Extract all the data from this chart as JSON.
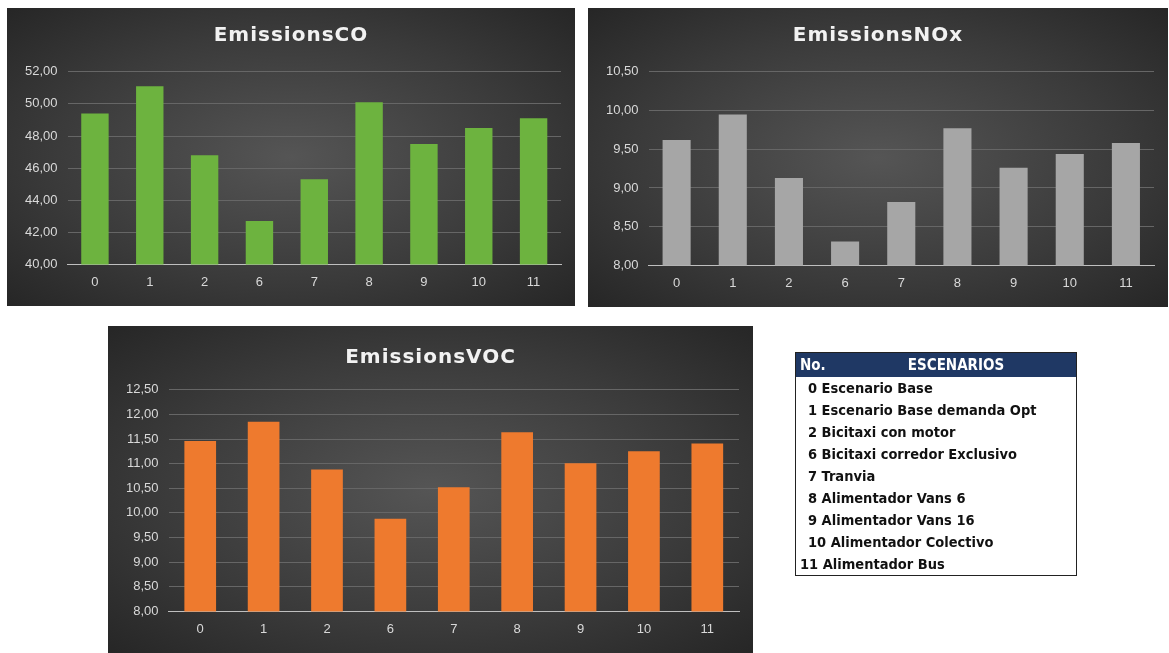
{
  "chart_data": [
    {
      "type": "bar",
      "title": "EmissionsCO",
      "categories": [
        "0",
        "1",
        "2",
        "6",
        "7",
        "8",
        "9",
        "10",
        "11"
      ],
      "values": [
        49.4,
        51.1,
        46.8,
        42.7,
        45.3,
        50.1,
        47.5,
        48.5,
        49.1
      ],
      "color": "#6db33f",
      "ylim": [
        40,
        52
      ],
      "yticks": [
        {
          "value": 40,
          "label": "40,00"
        },
        {
          "value": 42,
          "label": "42,00"
        },
        {
          "value": 44,
          "label": "44,00"
        },
        {
          "value": 46,
          "label": "46,00"
        },
        {
          "value": 48,
          "label": "48,00"
        },
        {
          "value": 50,
          "label": "50,00"
        },
        {
          "value": 52,
          "label": "52,00"
        }
      ],
      "grid": "y",
      "legend": false
    },
    {
      "type": "bar",
      "title": "EmissionsNOx",
      "categories": [
        "0",
        "1",
        "2",
        "6",
        "7",
        "8",
        "9",
        "10",
        "11"
      ],
      "values": [
        9.62,
        9.95,
        9.13,
        8.31,
        8.82,
        9.77,
        9.26,
        9.44,
        9.58
      ],
      "color": "#a6a6a6",
      "ylim": [
        8,
        10.5
      ],
      "yticks": [
        {
          "value": 8,
          "label": "8,00"
        },
        {
          "value": 8.5,
          "label": "8,50"
        },
        {
          "value": 9,
          "label": "9,00"
        },
        {
          "value": 9.5,
          "label": "9,50"
        },
        {
          "value": 10,
          "label": "10,00"
        },
        {
          "value": 10.5,
          "label": "10,50"
        }
      ],
      "grid": "y",
      "legend": false
    },
    {
      "type": "bar",
      "title": "EmissionsVOC",
      "categories": [
        "0",
        "1",
        "2",
        "6",
        "7",
        "8",
        "9",
        "10",
        "11"
      ],
      "values": [
        11.46,
        11.85,
        10.88,
        9.88,
        10.52,
        11.64,
        11.01,
        11.25,
        11.41
      ],
      "color": "#ee7a2e",
      "ylim": [
        8,
        12.5
      ],
      "yticks": [
        {
          "value": 8,
          "label": "8,00"
        },
        {
          "value": 8.5,
          "label": "8,50"
        },
        {
          "value": 9,
          "label": "9,00"
        },
        {
          "value": 9.5,
          "label": "9,50"
        },
        {
          "value": 10,
          "label": "10,00"
        },
        {
          "value": 10.5,
          "label": "10,50"
        },
        {
          "value": 11,
          "label": "11,00"
        },
        {
          "value": 11.5,
          "label": "11,50"
        },
        {
          "value": 12,
          "label": "12,00"
        },
        {
          "value": 12.5,
          "label": "12,50"
        }
      ],
      "grid": "y",
      "legend": false
    },
    {
      "type": "other",
      "title": "ESCENARIOS",
      "xlabel": "No.",
      "annotations": [
        "0 Escenario Base",
        "1 Escenario Base demanda Opt",
        "2 Bicitaxi con motor",
        "6 Bicitaxi corredor Exclusivo",
        "7 Tranvia",
        "8 Alimentador Vans 6",
        "9 Alimentador Vans 16",
        "10 Alimentador Colectivo",
        "11 Alimentador Bus"
      ]
    }
  ]
}
